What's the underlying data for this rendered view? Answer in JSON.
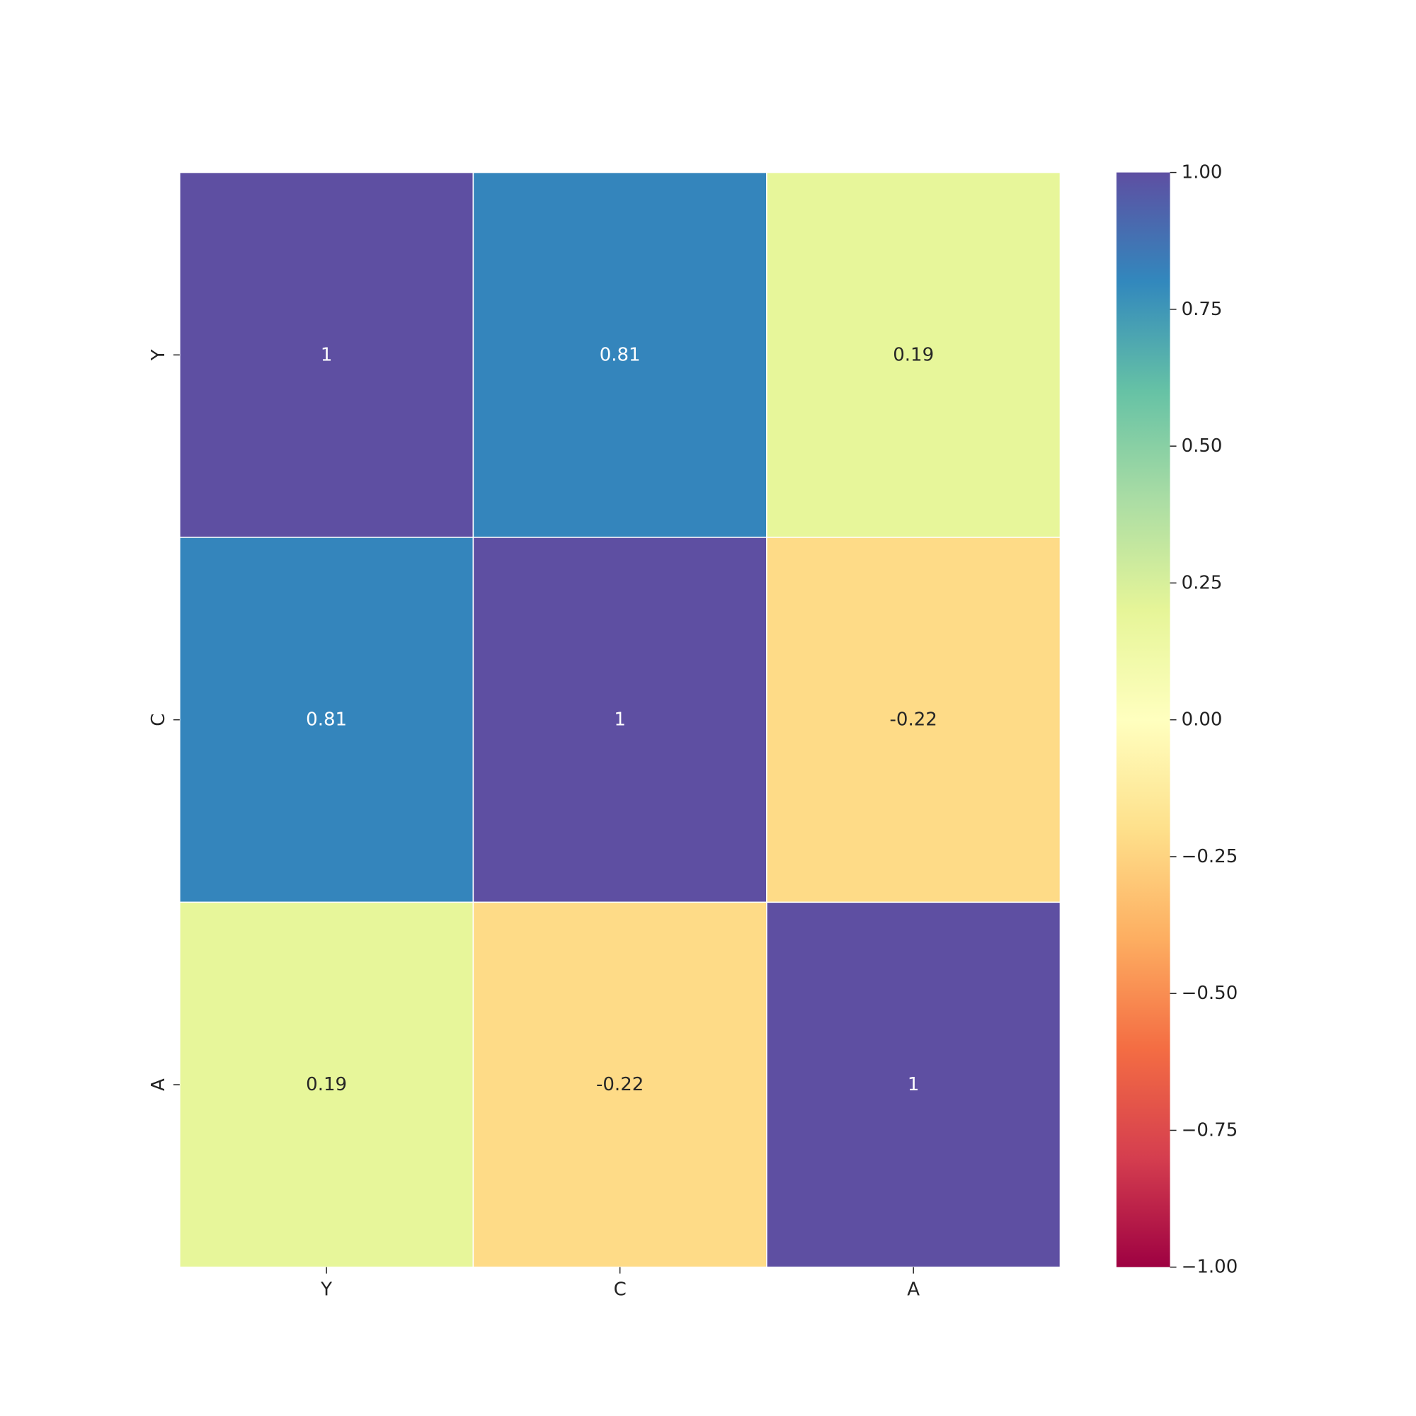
{
  "chart_data": {
    "type": "heatmap",
    "title": "",
    "xlabel": "",
    "ylabel": "",
    "x_categories": [
      "Y",
      "C",
      "A"
    ],
    "y_categories": [
      "Y",
      "C",
      "A"
    ],
    "values": [
      [
        1,
        0.81,
        0.19
      ],
      [
        0.81,
        1,
        -0.22
      ],
      [
        0.19,
        -0.22,
        1
      ]
    ],
    "cell_labels": [
      [
        "1",
        "0.81",
        "0.19"
      ],
      [
        "0.81",
        "1",
        "-0.22"
      ],
      [
        "0.19",
        "-0.22",
        "1"
      ]
    ],
    "colormap": "Spectral",
    "cell_border_color": "#ffffff",
    "colorbar": {
      "placement": "right",
      "vmin": -1,
      "vmax": 1,
      "ticks": [
        1,
        0.75,
        0.5,
        0.25,
        0,
        -0.25,
        -0.5,
        -0.75,
        -1
      ],
      "tick_labels": [
        "1.00",
        "0.75",
        "0.50",
        "0.25",
        "0.00",
        "−0.25",
        "−0.50",
        "−0.75",
        "−1.00"
      ]
    }
  }
}
